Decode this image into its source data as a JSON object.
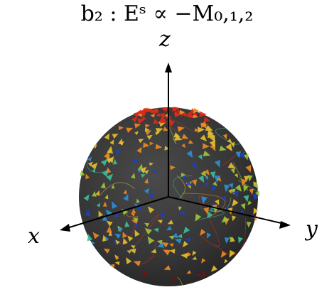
{
  "title": "b₂ : Eˢ ∝ −M₀,₁,₂",
  "axes": {
    "x": "x",
    "y": "y",
    "z": "z"
  },
  "colors": {
    "sphere": "#3a3a3a",
    "axis": "#000000",
    "field_scale": [
      "#1f3fbf",
      "#2c8fd6",
      "#3bbf9a",
      "#9cc83a",
      "#e8c12e",
      "#f08a24",
      "#d92a1a",
      "#7a0f0f"
    ]
  },
  "icons": {
    "field_arrow": "triangle-arrowhead-icon"
  }
}
